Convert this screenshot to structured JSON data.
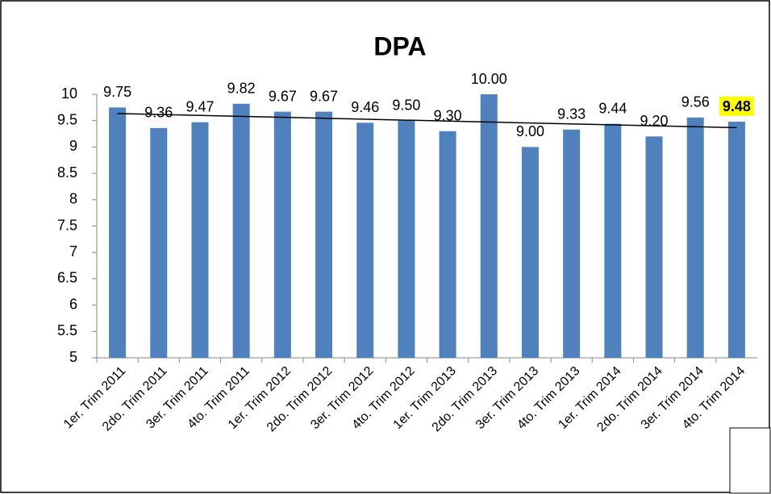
{
  "chart_data": {
    "type": "bar",
    "title": "DPA",
    "categories": [
      "1er. Trim 2011",
      "2do. Trim 2011",
      "3er. Trim 2011",
      "4to. Trim 2011",
      "1er. Trim 2012",
      "2do. Trim 2012",
      "3er. Trim 2012",
      "4to. Trim 2012",
      "1er. Trim 2013",
      "2do. Trim 2013",
      "3er. Trim 2013",
      "4to. Trim 2013",
      "1er. Trim 2014",
      "2do. Trim 2014",
      "3er. Trim 2014",
      "4to. Trim 2014"
    ],
    "values": [
      9.75,
      9.36,
      9.47,
      9.82,
      9.67,
      9.67,
      9.46,
      9.5,
      9.3,
      10,
      9,
      9.33,
      9.44,
      9.2,
      9.56,
      9.48
    ],
    "value_labels": [
      "9.75",
      "9.36",
      "9.47",
      "9.82",
      "9.67",
      "9.67",
      "9.46",
      "9.50",
      "9.30",
      "10.00",
      "9.00",
      "9.33",
      "9.44",
      "9.20",
      "9.56",
      "9.48"
    ],
    "color": "#4f81bd",
    "ylim": [
      5,
      10
    ],
    "yticks": [
      5,
      5.5,
      6,
      6.5,
      7,
      7.5,
      8,
      8.5,
      9,
      9.5,
      10
    ],
    "trendline": "linear",
    "highlight_index": 15,
    "highlight_color": "#ffff00"
  }
}
